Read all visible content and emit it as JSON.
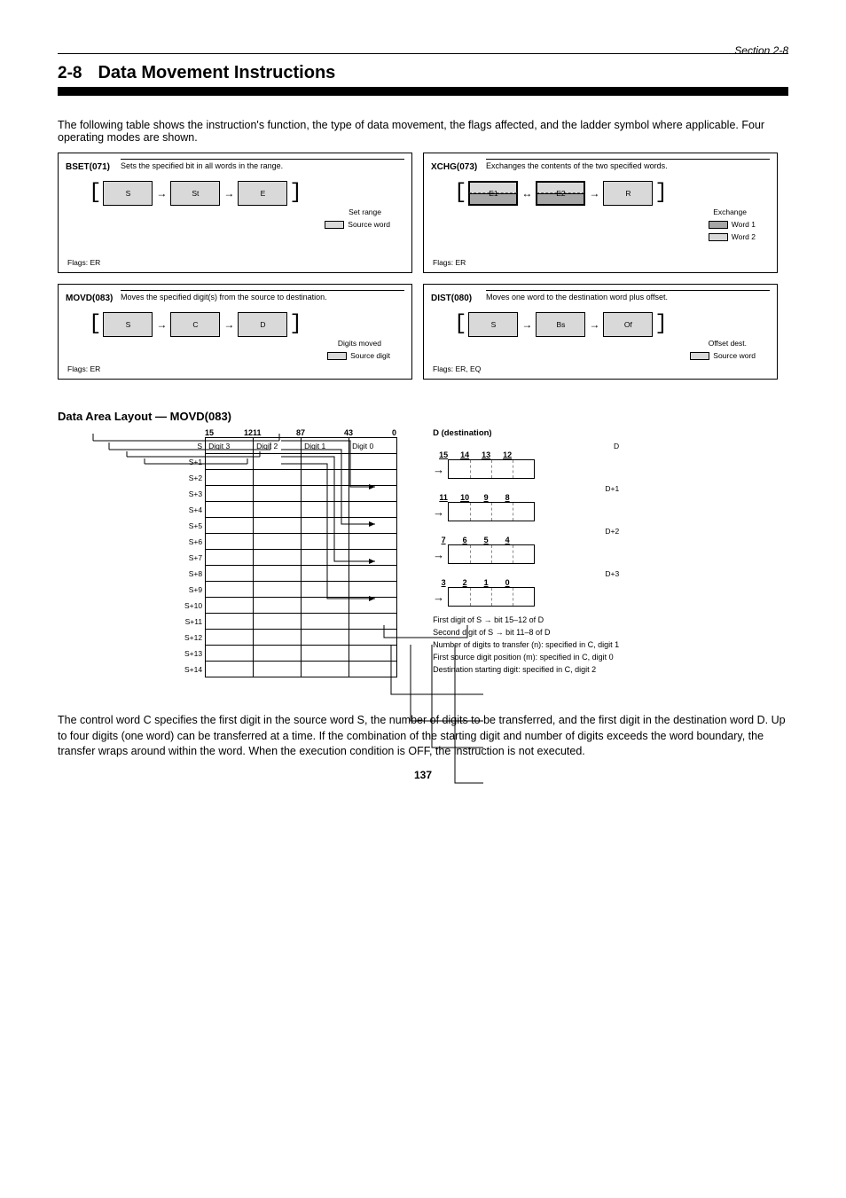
{
  "header": {
    "section_num": "2-8",
    "section_title": "Data Movement Instructions",
    "side_label": "Section 2-8"
  },
  "intro": "The following table shows the instruction's function, the type of data movement, the flags affected, and the ladder symbol where applicable. Four operating modes are shown.",
  "panels": [
    {
      "id": "A",
      "name": "BSET(071)",
      "timing": "Sets the specified bit in all words in the range.",
      "stages": [
        {
          "txt": "S",
          "bg": "g"
        },
        {
          "txt": "→",
          "arrow": true
        },
        {
          "txt": "St",
          "bg": "g"
        },
        {
          "txt": "→",
          "arrow": true
        },
        {
          "txt": "E",
          "bg": "g"
        }
      ],
      "rowcap": "Set range",
      "legend": [
        {
          "cls": "lg-g",
          "txt": "Source word"
        }
      ],
      "flags": "Flags: ER",
      "tall": true
    },
    {
      "id": "B",
      "name": "XCHG(073)",
      "timing": "Exchanges the contents of the two specified words.",
      "stages": [
        {
          "txt": "E1",
          "bg": "mix"
        },
        {
          "txt": "↔",
          "arrow": true
        },
        {
          "txt": "E2",
          "bg": "mix"
        },
        {
          "txt": "→",
          "arrow": true
        },
        {
          "txt": "R",
          "bg": "g"
        }
      ],
      "rowcap": "Exchange",
      "legend": [
        {
          "cls": "lg-dg",
          "txt": "Word 1"
        },
        {
          "cls": "lg-g",
          "txt": "Word 2"
        }
      ],
      "flags": "Flags: ER",
      "tall": true
    },
    {
      "id": "C",
      "name": "MOVD(083)",
      "timing": "Moves the specified digit(s) from the source to destination.",
      "stages": [
        {
          "txt": "S",
          "bg": "g"
        },
        {
          "txt": "→",
          "arrow": true
        },
        {
          "txt": "C",
          "bg": "g"
        },
        {
          "txt": "→",
          "arrow": true
        },
        {
          "txt": "D",
          "bg": "g"
        }
      ],
      "rowcap": "Digits moved",
      "legend": [
        {
          "cls": "lg-g",
          "txt": "Source digit"
        }
      ],
      "flags": "Flags: ER",
      "tall": false
    },
    {
      "id": "D",
      "name": "DIST(080)",
      "timing": "Moves one word to the destination word plus offset.",
      "stages": [
        {
          "txt": "S",
          "bg": "g"
        },
        {
          "txt": "→",
          "arrow": true
        },
        {
          "txt": "Bs",
          "bg": "g"
        },
        {
          "txt": "→",
          "arrow": true
        },
        {
          "txt": "Of",
          "bg": "g"
        }
      ],
      "rowcap": "Offset dest.",
      "legend": [
        {
          "cls": "lg-g",
          "txt": "Source word"
        }
      ],
      "flags": "Flags: ER, EQ",
      "tall": false
    }
  ],
  "layout": {
    "title": "Data Area Layout — MOVD(083)",
    "bit_groups": [
      "15",
      "12",
      "11",
      "8",
      "7",
      "4",
      "3",
      "0"
    ],
    "rows": [
      {
        "label": "S",
        "c": [
          "Digit 3",
          "Digit 2",
          "Digit 1",
          "Digit 0"
        ]
      },
      {
        "label": "S+1",
        "c": [
          "",
          "",
          "",
          ""
        ]
      },
      {
        "label": "S+2",
        "c": [
          "",
          "",
          "",
          ""
        ]
      },
      {
        "label": "S+3",
        "c": [
          "",
          "",
          "",
          ""
        ]
      },
      {
        "label": "S+4",
        "c": [
          "",
          "",
          "",
          ""
        ]
      },
      {
        "label": "S+5",
        "c": [
          "",
          "",
          "",
          ""
        ]
      },
      {
        "label": "S+6",
        "c": [
          "",
          "",
          "",
          ""
        ]
      },
      {
        "label": "S+7",
        "c": [
          "",
          "",
          "",
          ""
        ]
      },
      {
        "label": "S+8",
        "c": [
          "",
          "",
          "",
          ""
        ]
      },
      {
        "label": "S+9",
        "c": [
          "",
          "",
          "",
          ""
        ]
      },
      {
        "label": "S+10",
        "c": [
          "",
          "",
          "",
          ""
        ]
      },
      {
        "label": "S+11",
        "c": [
          "",
          "",
          "",
          ""
        ]
      },
      {
        "label": "S+12",
        "c": [
          "",
          "",
          "",
          ""
        ]
      },
      {
        "label": "S+13",
        "c": [
          "",
          "",
          "",
          ""
        ]
      },
      {
        "label": "S+14",
        "c": [
          "",
          "",
          "",
          ""
        ]
      }
    ],
    "dest_label": "D (destination)",
    "dest_rows": [
      {
        "word": "D",
        "bits": [
          "15",
          "14",
          "13",
          "12"
        ]
      },
      {
        "word": "D+1",
        "bits": [
          "11",
          "10",
          "9",
          "8"
        ]
      },
      {
        "word": "D+2",
        "bits": [
          "7",
          "6",
          "5",
          "4"
        ]
      },
      {
        "word": "D+3",
        "bits": [
          "3",
          "2",
          "1",
          "0"
        ]
      }
    ],
    "callouts": [
      "First digit of S → bit 15–12 of D",
      "Second digit of S → bit 11–8 of D",
      "Number of digits to transfer (n): specified in C, digit 1",
      "First source digit position (m): specified in C, digit 0",
      "Destination starting digit: specified in C, digit 2"
    ]
  },
  "footer_desc": "The control word C specifies the first digit in the source word S, the number of digits to be transferred, and the first digit in the destination word D. Up to four digits (one word) can be transferred at a time. If the combination of the starting digit and number of digits exceeds the word boundary, the transfer wraps around within the word. When the execution condition is OFF, the instruction is not executed.",
  "page_number": "137"
}
